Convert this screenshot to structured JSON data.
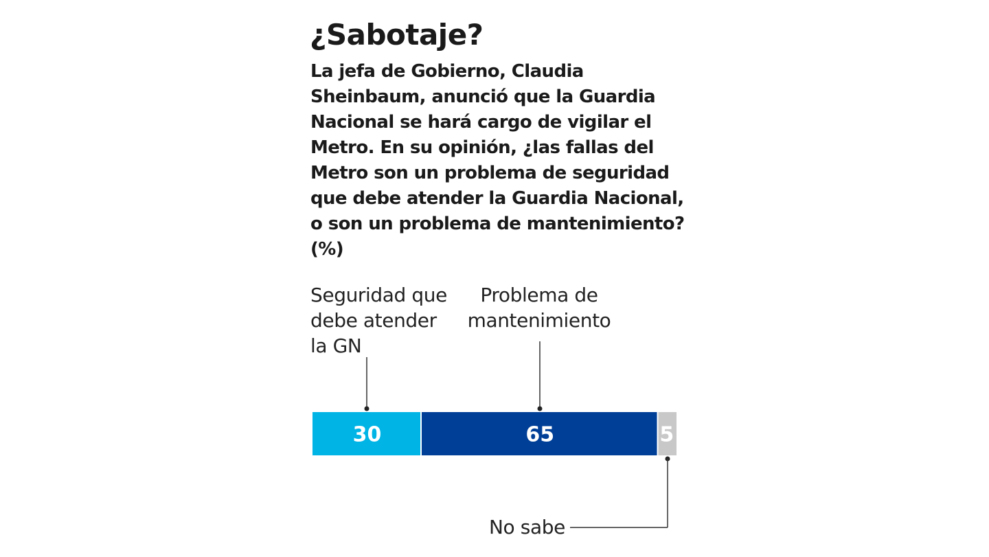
{
  "header": {
    "title": "¿Sabotaje?",
    "question": "La jefa de Gobierno, Claudia Sheinbaum, anunció que la Guardia Nacional se hará cargo de vigilar el Metro. En su opinión, ¿las fallas del Metro son un problema de seguridad que debe atender la Guardia Nacional, o son un problema de mantenimiento?  (%)"
  },
  "labels": {
    "seguridad": "Seguridad que\ndebe atender\nla GN",
    "mantenimiento": "Problema de\nmantenimiento",
    "no_sabe": "No sabe"
  },
  "chart_data": {
    "type": "bar",
    "orientation": "horizontal-stacked",
    "unit": "%",
    "categories": [
      "Seguridad que debe atender la GN",
      "Problema de mantenimiento",
      "No sabe"
    ],
    "values": [
      30,
      65,
      5
    ],
    "colors": [
      "#00b4e6",
      "#003f98",
      "#c8c8c8"
    ],
    "value_labels": [
      "30",
      "65",
      "5"
    ]
  }
}
